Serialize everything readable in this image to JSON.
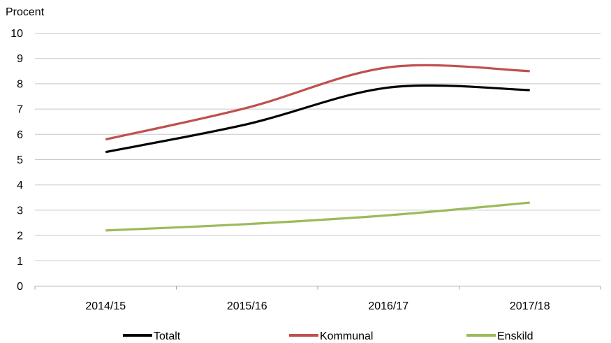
{
  "chart_data": {
    "type": "line",
    "title": "",
    "xlabel": "",
    "ylabel": "Procent",
    "ylim": [
      0,
      10
    ],
    "yticks": [
      "0",
      "1",
      "2",
      "3",
      "4",
      "5",
      "6",
      "7",
      "8",
      "9",
      "10"
    ],
    "categories": [
      "2014/15",
      "2015/16",
      "2016/17",
      "2017/18"
    ],
    "grid": true,
    "legend_position": "bottom",
    "series": [
      {
        "name": "Totalt",
        "color": "#000000",
        "values": [
          5.3,
          6.4,
          7.85,
          7.75
        ]
      },
      {
        "name": "Kommunal",
        "color": "#c0504d",
        "values": [
          5.8,
          7.05,
          8.65,
          8.5
        ]
      },
      {
        "name": "Enskild",
        "color": "#9bbb59",
        "values": [
          2.2,
          2.45,
          2.8,
          3.3
        ]
      }
    ]
  }
}
